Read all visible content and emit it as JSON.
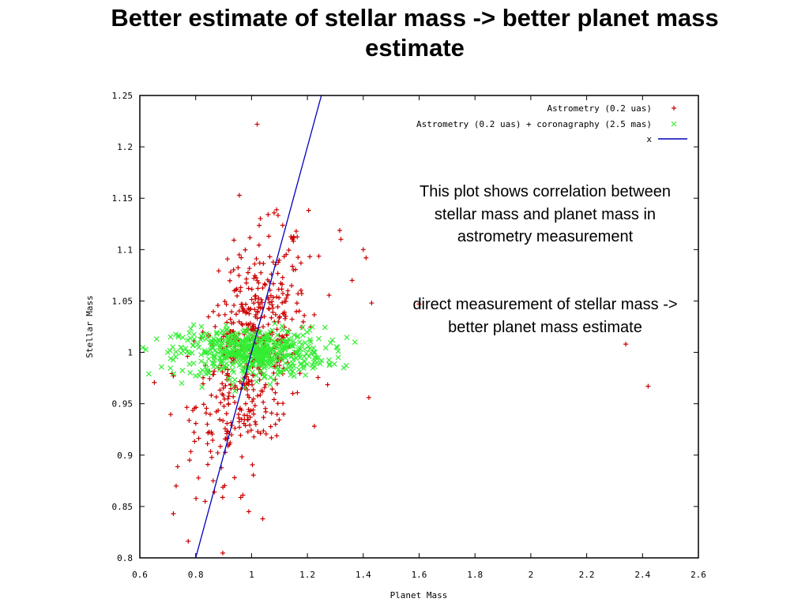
{
  "slide": {
    "title_line1": "Better estimate of stellar mass -> better planet mass",
    "title_line2": "estimate"
  },
  "notes": {
    "correlation": "This plot shows correlation between stellar mass and planet mass in astrometry measurement",
    "direct": "direct measurement of stellar mass -> better planet mass estimate"
  },
  "colors": {
    "astrometry": "#cc0000",
    "coronagraphy": "#33ee33",
    "line": "#0000bb"
  },
  "chart_data": {
    "type": "scatter",
    "xlabel": "Planet Mass",
    "ylabel": "Stellar Mass",
    "xlim": [
      0.6,
      2.6
    ],
    "ylim": [
      0.8,
      1.25
    ],
    "xticks": [
      "0.6",
      "0.8",
      "1",
      "1.2",
      "1.4",
      "1.6",
      "1.8",
      "2",
      "2.2",
      "2.4",
      "2.6"
    ],
    "yticks": [
      "1.25",
      "1.2",
      "1.15",
      "1.1",
      "1.05",
      "1",
      "0.95",
      "0.9",
      "0.85",
      "0.8"
    ],
    "grid": false,
    "legend_position": "top-right",
    "series": [
      {
        "name": "Astrometry (0.2 uas)",
        "marker": "+",
        "cloud": {
          "x_center": 1.0,
          "y_center": 1.0,
          "x_spread": 0.1,
          "y_spread": 0.05,
          "count": 550
        },
        "outliers": [
          {
            "x": 1.02,
            "y": 1.222
          },
          {
            "x": 2.42,
            "y": 0.967
          },
          {
            "x": 2.34,
            "y": 1.008
          },
          {
            "x": 1.42,
            "y": 0.956
          },
          {
            "x": 1.43,
            "y": 1.048
          },
          {
            "x": 1.6,
            "y": 1.047
          },
          {
            "x": 1.4,
            "y": 1.1
          },
          {
            "x": 1.41,
            "y": 1.092
          },
          {
            "x": 0.72,
            "y": 0.843
          },
          {
            "x": 0.99,
            "y": 0.845
          },
          {
            "x": 1.04,
            "y": 0.838
          },
          {
            "x": 0.73,
            "y": 0.87
          },
          {
            "x": 1.36,
            "y": 1.07
          },
          {
            "x": 1.32,
            "y": 1.11
          },
          {
            "x": 0.72,
            "y": 0.977
          }
        ]
      },
      {
        "name": "Astrometry (0.2 uas) + coronagraphy (2.5 mas)",
        "marker": "x",
        "cloud": {
          "x_center": 1.0,
          "y_center": 1.0,
          "x_spread": 0.13,
          "y_spread": 0.012,
          "count": 550
        },
        "outliers": [
          {
            "x": 0.7,
            "y": 1.0
          },
          {
            "x": 0.71,
            "y": 1.015
          },
          {
            "x": 1.37,
            "y": 1.01
          },
          {
            "x": 1.31,
            "y": 0.995
          },
          {
            "x": 1.33,
            "y": 0.985
          },
          {
            "x": 0.75,
            "y": 0.97
          }
        ]
      },
      {
        "name": "x",
        "type": "line",
        "x": [
          0.8,
          1.25
        ],
        "y": [
          0.8,
          1.25
        ]
      }
    ]
  }
}
